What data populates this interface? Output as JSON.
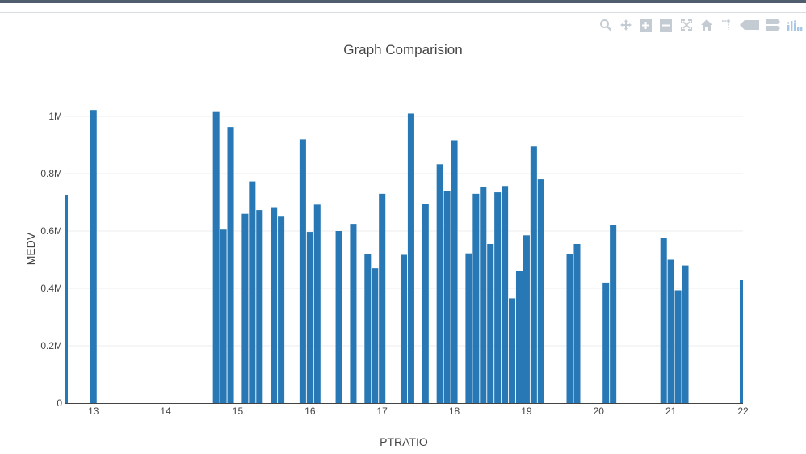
{
  "modebar": {
    "icons": [
      "zoom-icon",
      "pan-icon",
      "zoom-in-icon",
      "zoom-out-icon",
      "autoscale-icon",
      "reset-axes-icon",
      "spike-lines-icon",
      "hover-closest-icon",
      "hover-compare-icon",
      "plotly-logo-icon"
    ],
    "color": "#c4cbd3"
  },
  "chart_data": {
    "type": "bar",
    "title": "Graph Comparision",
    "xlabel": "PTRATIO",
    "ylabel": "MEDV",
    "bar_color": "#2778b4",
    "xlim": [
      12.6,
      22
    ],
    "ylim": [
      0,
      1000000
    ],
    "x_ticks": [
      13,
      14,
      15,
      16,
      17,
      18,
      19,
      20,
      21,
      22
    ],
    "x_tick_labels": [
      "13",
      "14",
      "15",
      "16",
      "17",
      "18",
      "19",
      "20",
      "21",
      "22"
    ],
    "y_ticks": [
      0,
      200000,
      400000,
      600000,
      800000,
      1000000
    ],
    "y_tick_labels": [
      "0",
      "0.2M",
      "0.4M",
      "0.6M",
      "0.8M",
      "1M"
    ],
    "grid": true,
    "x": [
      12.6,
      13.0,
      14.7,
      14.8,
      14.9,
      15.1,
      15.2,
      15.3,
      15.5,
      15.6,
      15.9,
      16.0,
      16.1,
      16.4,
      16.6,
      16.8,
      16.9,
      17.0,
      17.3,
      17.4,
      17.6,
      17.8,
      17.9,
      18.0,
      18.2,
      18.3,
      18.4,
      18.5,
      18.6,
      18.7,
      18.8,
      18.9,
      19.0,
      19.1,
      19.2,
      19.6,
      19.7,
      20.1,
      20.2,
      20.9,
      21.0,
      21.1,
      21.2,
      22.0
    ],
    "values": [
      725000,
      1022000,
      1015000,
      605000,
      963000,
      660000,
      773000,
      673000,
      683000,
      650000,
      920000,
      597000,
      692000,
      600000,
      625000,
      520000,
      470000,
      730000,
      517000,
      1010000,
      693000,
      833000,
      740000,
      917000,
      522000,
      730000,
      755000,
      555000,
      735000,
      757000,
      365000,
      460000,
      585000,
      895000,
      780000,
      520000,
      555000,
      420000,
      622000,
      575000,
      500000,
      393000,
      480000,
      430000
    ]
  }
}
